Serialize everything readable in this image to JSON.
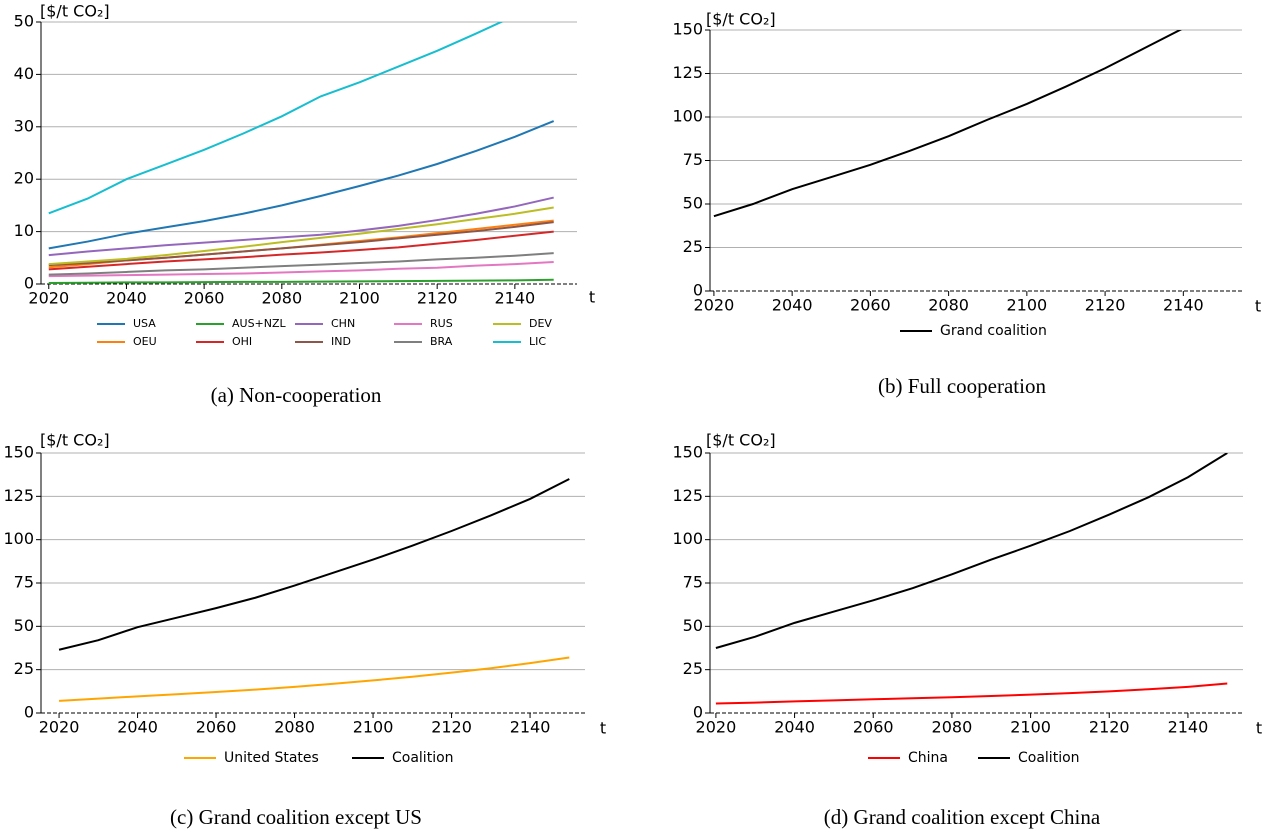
{
  "chart_data": [
    {
      "type": "line",
      "caption": "(a) Non-cooperation",
      "y_label": "[$/t CO₂]",
      "x_label": "t",
      "x": [
        2020,
        2030,
        2040,
        2050,
        2060,
        2070,
        2080,
        2090,
        2100,
        2110,
        2120,
        2130,
        2140,
        2150
      ],
      "xlim": [
        2018,
        2156
      ],
      "xticks": [
        2020,
        2040,
        2060,
        2080,
        2100,
        2120,
        2140
      ],
      "ylim": [
        0,
        50
      ],
      "yticks": [
        0,
        10,
        20,
        30,
        40,
        50
      ],
      "grid": true,
      "legend": "lower center",
      "series": [
        {
          "name": "USA",
          "color": "#1f77b4",
          "values": [
            6.8,
            8.1,
            9.6,
            10.8,
            12.0,
            13.4,
            15.0,
            16.8,
            18.7,
            20.7,
            22.9,
            25.4,
            28.1,
            31.1
          ]
        },
        {
          "name": "OEU",
          "color": "#ff7f0e",
          "values": [
            3.2,
            3.8,
            4.5,
            5.0,
            5.6,
            6.2,
            6.8,
            7.5,
            8.2,
            8.9,
            9.7,
            10.5,
            11.3,
            12.1
          ]
        },
        {
          "name": "AUS+NZL",
          "color": "#2ca02c",
          "values": [
            0.2,
            0.25,
            0.3,
            0.3,
            0.35,
            0.4,
            0.4,
            0.45,
            0.5,
            0.55,
            0.6,
            0.65,
            0.7,
            0.8
          ]
        },
        {
          "name": "OHI",
          "color": "#d62728",
          "values": [
            2.8,
            3.3,
            3.8,
            4.3,
            4.7,
            5.1,
            5.6,
            6.0,
            6.5,
            7.0,
            7.7,
            8.4,
            9.2,
            10.0
          ]
        },
        {
          "name": "CHN",
          "color": "#9467bd",
          "values": [
            5.5,
            6.2,
            6.8,
            7.4,
            7.9,
            8.4,
            8.9,
            9.4,
            10.2,
            11.1,
            12.2,
            13.4,
            14.8,
            16.5
          ]
        },
        {
          "name": "IND",
          "color": "#8c564b",
          "values": [
            3.6,
            4.0,
            4.5,
            5.0,
            5.6,
            6.2,
            6.8,
            7.4,
            8.0,
            8.7,
            9.4,
            10.1,
            10.9,
            11.8
          ]
        },
        {
          "name": "RUS",
          "color": "#e377c2",
          "values": [
            1.5,
            1.6,
            1.7,
            1.8,
            1.9,
            2.0,
            2.2,
            2.4,
            2.6,
            2.9,
            3.1,
            3.5,
            3.8,
            4.2
          ]
        },
        {
          "name": "BRA",
          "color": "#7f7f7f",
          "values": [
            1.8,
            2.0,
            2.3,
            2.6,
            2.8,
            3.1,
            3.4,
            3.7,
            4.0,
            4.3,
            4.7,
            5.0,
            5.4,
            5.9
          ]
        },
        {
          "name": "DEV",
          "color": "#bcbd22",
          "values": [
            3.8,
            4.3,
            4.8,
            5.5,
            6.3,
            7.1,
            8.0,
            8.8,
            9.6,
            10.5,
            11.4,
            12.4,
            13.4,
            14.6
          ]
        },
        {
          "name": "LIC",
          "color": "#17becf",
          "values": [
            13.5,
            16.3,
            20.0,
            22.8,
            25.6,
            28.7,
            32.0,
            35.8,
            38.5,
            41.5,
            44.5,
            47.8,
            51.2,
            null
          ]
        }
      ]
    },
    {
      "type": "line",
      "caption": "(b) Full cooperation",
      "y_label": "[$/t CO₂]",
      "x_label": "t",
      "x": [
        2020,
        2030,
        2040,
        2050,
        2060,
        2070,
        2080,
        2090,
        2100,
        2110,
        2120,
        2130,
        2140,
        2150
      ],
      "xlim": [
        2019,
        2155
      ],
      "xticks": [
        2020,
        2040,
        2060,
        2080,
        2100,
        2120,
        2140
      ],
      "ylim": [
        0,
        150
      ],
      "yticks": [
        0,
        25,
        50,
        75,
        100,
        125,
        150
      ],
      "grid": true,
      "legend": "lower center",
      "series": [
        {
          "name": "Grand coalition",
          "color": "#000000",
          "values": [
            43,
            50,
            58.5,
            65.5,
            72.5,
            80.5,
            89,
            98.5,
            107.5,
            117.5,
            128,
            139.5,
            151,
            null
          ]
        }
      ]
    },
    {
      "type": "line",
      "caption": "(c) Grand coalition except US",
      "y_label": "[$/t CO₂]",
      "x_label": "t",
      "x": [
        2020,
        2030,
        2040,
        2050,
        2060,
        2070,
        2080,
        2090,
        2100,
        2110,
        2120,
        2130,
        2140,
        2150
      ],
      "xlim": [
        2015.4,
        2154
      ],
      "xticks": [
        2020,
        2040,
        2060,
        2080,
        2100,
        2120,
        2140
      ],
      "ylim": [
        0,
        150
      ],
      "yticks": [
        0,
        25,
        50,
        75,
        100,
        125,
        150
      ],
      "grid": true,
      "legend": "lower center",
      "series": [
        {
          "name": "United States",
          "color": "#ffa500",
          "values": [
            7,
            8.3,
            9.6,
            10.8,
            12.1,
            13.5,
            15.1,
            16.9,
            18.8,
            20.9,
            23.3,
            25.8,
            28.8,
            32
          ]
        },
        {
          "name": "Coalition",
          "color": "#000000",
          "values": [
            36.5,
            42,
            49.5,
            55,
            60.5,
            66.5,
            73.5,
            81,
            88.5,
            96.5,
            105,
            114,
            123.5,
            135
          ]
        }
      ]
    },
    {
      "type": "line",
      "caption": "(d) Grand coalition except China",
      "y_label": "[$/t CO₂]",
      "x_label": "t",
      "x": [
        2020,
        2030,
        2040,
        2050,
        2060,
        2070,
        2080,
        2090,
        2100,
        2110,
        2120,
        2130,
        2140,
        2150
      ],
      "xlim": [
        2018.5,
        2154
      ],
      "xticks": [
        2020,
        2040,
        2060,
        2080,
        2100,
        2120,
        2140
      ],
      "ylim": [
        0,
        150
      ],
      "yticks": [
        0,
        25,
        50,
        75,
        100,
        125,
        150
      ],
      "grid": true,
      "legend": "lower center",
      "series": [
        {
          "name": "China",
          "color": "#ff0000",
          "values": [
            5.5,
            6,
            6.7,
            7.3,
            7.9,
            8.5,
            9.1,
            9.8,
            10.6,
            11.5,
            12.5,
            13.7,
            15.1,
            17
          ]
        },
        {
          "name": "Coalition",
          "color": "#000000",
          "values": [
            37.5,
            44,
            52,
            58.5,
            65,
            72,
            80,
            88.5,
            96.5,
            105,
            114.5,
            124.5,
            136,
            150
          ]
        }
      ]
    }
  ]
}
